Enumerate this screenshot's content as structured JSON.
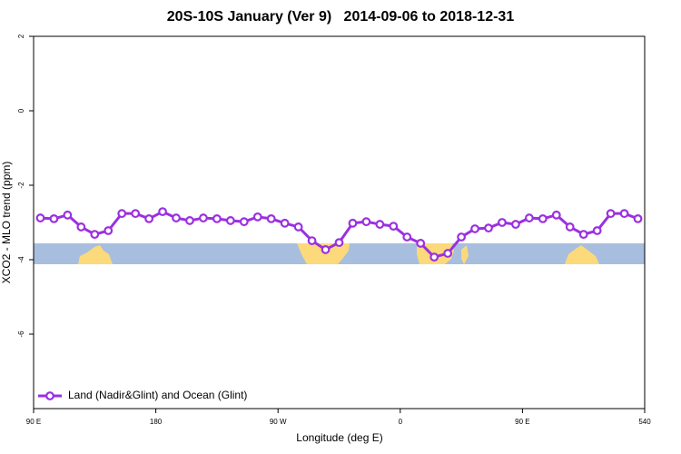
{
  "chart_data": {
    "type": "line",
    "title": "20S-10S January (Ver 9)   2014-09-06 to 2018-12-31",
    "x_label": "Longitude (deg E)",
    "y_label": "XCO2 - MLO trend (ppm)",
    "xlim": [
      90,
      540
    ],
    "xticks": [
      {
        "value": 90,
        "label": "90 E"
      },
      180,
      {
        "value": 270,
        "label": "90 W"
      },
      {
        "value": 360,
        "label": "0"
      },
      {
        "value": 450,
        "label": "90 E"
      },
      540
    ],
    "ylim": [
      -8,
      2
    ],
    "yticks": [
      2,
      0,
      -2,
      -4,
      -6
    ],
    "grid": false,
    "legend": "bottom-left",
    "x": [
      95,
      105,
      115,
      125,
      135,
      145,
      155,
      165,
      175,
      185,
      195,
      205,
      215,
      225,
      235,
      245,
      255,
      265,
      275,
      285,
      295,
      305,
      315,
      325,
      335,
      345,
      355,
      365,
      375,
      385,
      395,
      405,
      415,
      425,
      435,
      445,
      455,
      465,
      475,
      485,
      495,
      505,
      515,
      525,
      535
    ],
    "series": [
      {
        "name": "Land (Nadir&Glint) and Ocean (Glint)",
        "color": "#9b30e0",
        "values": [
          -2.88,
          -2.9,
          -2.8,
          -3.12,
          -3.32,
          -3.22,
          -2.76,
          -2.76,
          -2.9,
          -2.71,
          -2.88,
          -2.95,
          -2.88,
          -2.9,
          -2.95,
          -2.98,
          -2.85,
          -2.9,
          -3.02,
          -3.12,
          -3.49,
          -3.73,
          -3.54,
          -3.02,
          -2.98,
          -3.05,
          -3.1,
          -3.39,
          -3.56,
          -3.93,
          -3.83,
          -3.39,
          -3.17,
          -3.15,
          -3.0,
          -3.05,
          -2.88,
          -2.9,
          -2.8,
          -3.12,
          -3.32,
          -3.22,
          -2.76,
          -2.76,
          -2.9
        ]
      }
    ]
  }
}
